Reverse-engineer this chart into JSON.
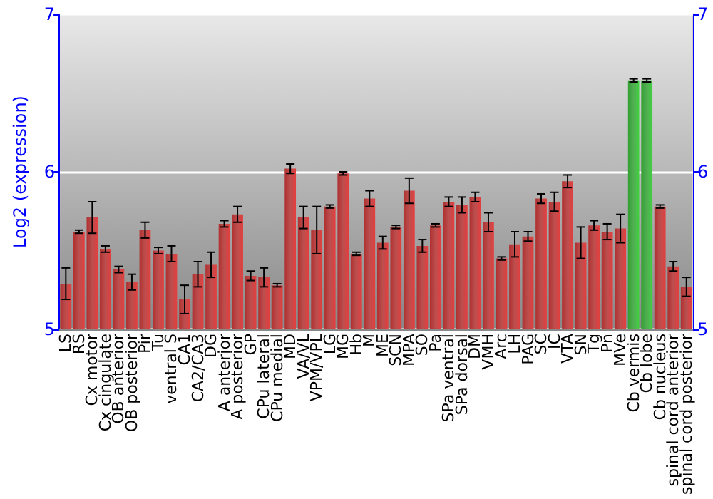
{
  "chart_data": {
    "type": "bar",
    "ylabel": "Log2 (expression)",
    "categories": [
      "LS",
      "RS",
      "Cx motor",
      "Cx cingulate",
      "OB anterior",
      "OB posterior",
      "Pir",
      "Tu",
      "ventral S",
      "CA1",
      "CA2/CA3",
      "DG",
      "A anterior",
      "A posterior",
      "GP",
      "CPu lateral",
      "CPu medial",
      "MD",
      "VA/VL",
      "VPM/VPL",
      "LG",
      "MG",
      "Hb",
      "M",
      "ME",
      "SCN",
      "MPA",
      "SO",
      "Pa",
      "SPa ventral",
      "SPa dorsal",
      "DM",
      "VMH",
      "Arc",
      "LH",
      "PAG",
      "SC",
      "IC",
      "VTA",
      "SN",
      "Tg",
      "Pn",
      "MVe",
      "Cb vermis",
      "Cb lobe",
      "Cb nucleus",
      "spinal cord anterior",
      "spinal cord posterior"
    ],
    "values": [
      5.29,
      5.62,
      5.71,
      5.51,
      5.38,
      5.3,
      5.63,
      5.5,
      5.48,
      5.19,
      5.35,
      5.41,
      5.67,
      5.73,
      5.34,
      5.33,
      5.28,
      6.02,
      5.71,
      5.63,
      5.78,
      5.99,
      5.48,
      5.83,
      5.55,
      5.65,
      5.88,
      5.53,
      5.66,
      5.81,
      5.79,
      5.84,
      5.68,
      5.45,
      5.54,
      5.59,
      5.83,
      5.81,
      5.94,
      5.55,
      5.66,
      5.62,
      5.64,
      6.58,
      6.58,
      5.78,
      5.4,
      5.27
    ],
    "errors": [
      0.1,
      0.01,
      0.1,
      0.02,
      0.02,
      0.05,
      0.05,
      0.02,
      0.05,
      0.09,
      0.08,
      0.08,
      0.02,
      0.05,
      0.03,
      0.06,
      0.01,
      0.03,
      0.07,
      0.15,
      0.01,
      0.01,
      0.01,
      0.05,
      0.04,
      0.01,
      0.08,
      0.04,
      0.01,
      0.03,
      0.05,
      0.03,
      0.06,
      0.01,
      0.08,
      0.03,
      0.03,
      0.06,
      0.04,
      0.1,
      0.03,
      0.05,
      0.09,
      0.01,
      0.01,
      0.01,
      0.03,
      0.06
    ],
    "colors": [
      "#b03030",
      "#b03030",
      "#b03030",
      "#b03030",
      "#b03030",
      "#b03030",
      "#b03030",
      "#b03030",
      "#b03030",
      "#b03030",
      "#b03030",
      "#b03030",
      "#b03030",
      "#b03030",
      "#b03030",
      "#b03030",
      "#b03030",
      "#b03030",
      "#b03030",
      "#b03030",
      "#b03030",
      "#b03030",
      "#b03030",
      "#b03030",
      "#b03030",
      "#b03030",
      "#b03030",
      "#b03030",
      "#b03030",
      "#b03030",
      "#b03030",
      "#b03030",
      "#b03030",
      "#b03030",
      "#b03030",
      "#b03030",
      "#b03030",
      "#b03030",
      "#b03030",
      "#b03030",
      "#b03030",
      "#b03030",
      "#b03030",
      "#33a033",
      "#33a033",
      "#b03030",
      "#b03030",
      "#b03030"
    ],
    "ylim": [
      5,
      7
    ],
    "yticks": [
      5,
      6,
      7
    ],
    "y2lim": [
      5,
      7
    ],
    "y2ticks": [
      5,
      6,
      7
    ],
    "grid": "y"
  }
}
